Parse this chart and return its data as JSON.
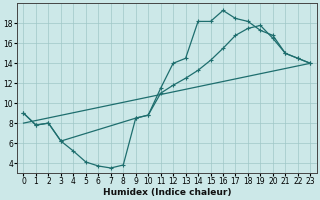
{
  "xlabel": "Humidex (Indice chaleur)",
  "xlim": [
    -0.5,
    23.5
  ],
  "ylim": [
    3.0,
    20.0
  ],
  "xticks": [
    0,
    1,
    2,
    3,
    4,
    5,
    6,
    7,
    8,
    9,
    10,
    11,
    12,
    13,
    14,
    15,
    16,
    17,
    18,
    19,
    20,
    21,
    22,
    23
  ],
  "yticks": [
    4,
    6,
    8,
    10,
    12,
    14,
    16,
    18
  ],
  "background_color": "#cce8e8",
  "grid_color": "#a0c8c8",
  "line_color": "#1e6e6e",
  "curve1_x": [
    0,
    1,
    2,
    3,
    4,
    5,
    6,
    7,
    8,
    9,
    10,
    11,
    12,
    13,
    14,
    15,
    16,
    17,
    18,
    19,
    20,
    21,
    22,
    23
  ],
  "curve1_y": [
    9.0,
    7.8,
    8.0,
    6.2,
    5.2,
    4.1,
    3.7,
    3.5,
    3.8,
    8.5,
    8.8,
    11.5,
    14.0,
    14.5,
    18.2,
    18.2,
    19.3,
    18.5,
    18.2,
    17.3,
    16.8,
    15.0,
    14.5,
    14.0
  ],
  "curve2_x": [
    0,
    1,
    2,
    3,
    9,
    10,
    11,
    12,
    13,
    14,
    15,
    16,
    17,
    18,
    19,
    20,
    21,
    22,
    23
  ],
  "curve2_y": [
    9.0,
    7.8,
    8.0,
    6.2,
    8.5,
    8.8,
    11.0,
    11.8,
    12.5,
    13.3,
    14.3,
    15.5,
    16.8,
    17.5,
    17.8,
    16.5,
    15.0,
    14.5,
    14.0
  ],
  "curve3_x": [
    0,
    23
  ],
  "curve3_y": [
    8.0,
    14.0
  ],
  "marker": "+"
}
